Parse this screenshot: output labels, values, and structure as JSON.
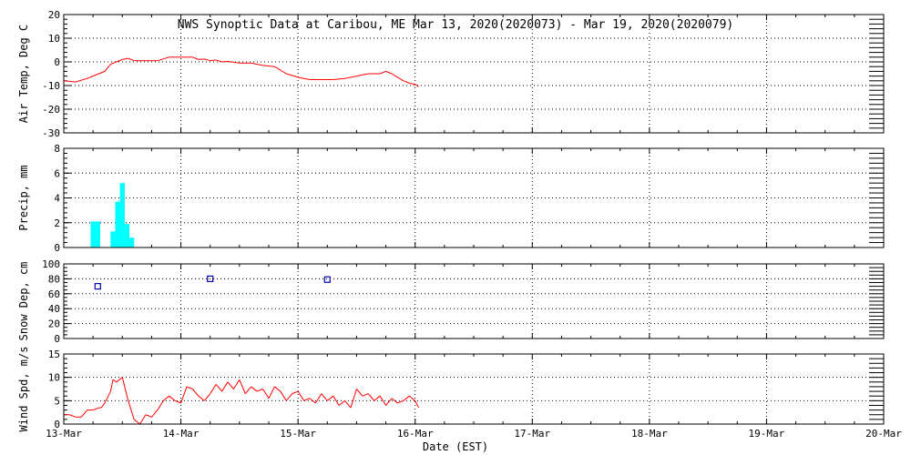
{
  "chart_data": {
    "title": "NWS Synoptic Data at Caribou, ME   Mar 13, 2020(2020073) - Mar 19, 2020(2020079)",
    "xlabel": "Date (EST)",
    "x_ticks": [
      "13-Mar",
      "14-Mar",
      "15-Mar",
      "16-Mar",
      "17-Mar",
      "18-Mar",
      "19-Mar",
      "20-Mar"
    ],
    "x_range": [
      0,
      7
    ],
    "grid": true,
    "panels": [
      {
        "name": "air-temp",
        "type": "line",
        "ylabel": "Air Temp, Deg C",
        "ylim": [
          -30,
          20
        ],
        "yticks": [
          20,
          10,
          0,
          -10,
          -20,
          -30
        ],
        "color": "#ff0000",
        "x": [
          0,
          0.1,
          0.2,
          0.25,
          0.3,
          0.35,
          0.4,
          0.5,
          0.55,
          0.6,
          0.7,
          0.8,
          0.9,
          0.95,
          1.0,
          1.1,
          1.15,
          1.2,
          1.25,
          1.3,
          1.35,
          1.4,
          1.5,
          1.6,
          1.7,
          1.8,
          1.9,
          2.0,
          2.05,
          2.1,
          2.2,
          2.3,
          2.4,
          2.5,
          2.6,
          2.7,
          2.75,
          2.8,
          2.85,
          2.9,
          2.95,
          3.0,
          3.03
        ],
        "y": [
          -8,
          -8.5,
          -7,
          -6,
          -5,
          -4,
          -1,
          1,
          1.5,
          0.5,
          0.5,
          0.5,
          2,
          2,
          2,
          2,
          1,
          1.2,
          0.5,
          0.8,
          0,
          0.2,
          -0.5,
          -0.5,
          -1.5,
          -2,
          -5,
          -6.5,
          -7,
          -7.5,
          -7.5,
          -7.5,
          -7,
          -6,
          -5,
          -5,
          -4,
          -5,
          -6.5,
          -8,
          -9,
          -9.5,
          -10.5
        ]
      },
      {
        "name": "precip",
        "type": "bar",
        "ylabel": "Precip, mm",
        "ylim": [
          0,
          8
        ],
        "yticks": [
          8,
          6,
          4,
          2,
          0
        ],
        "color": "#00ffff",
        "bar_width": 0.0417,
        "x": [
          0.25,
          0.29,
          0.42,
          0.46,
          0.5,
          0.54,
          0.58
        ],
        "values": [
          2.1,
          2.1,
          1.3,
          3.7,
          5.2,
          1.9,
          0.8
        ]
      },
      {
        "name": "snow-depth",
        "type": "scatter",
        "ylabel": "Snow Dep, cm",
        "ylim": [
          0,
          100
        ],
        "yticks": [
          100,
          80,
          60,
          40,
          20,
          0
        ],
        "color": "#0000aa",
        "x": [
          0.29,
          1.25,
          2.25
        ],
        "y": [
          70,
          80,
          79
        ]
      },
      {
        "name": "wind-speed",
        "type": "line",
        "ylabel": "Wind Spd, m/s",
        "ylim": [
          0,
          15
        ],
        "yticks": [
          15,
          10,
          5,
          0
        ],
        "color": "#ff0000",
        "x": [
          0,
          0.05,
          0.1,
          0.15,
          0.2,
          0.25,
          0.3,
          0.32,
          0.35,
          0.4,
          0.42,
          0.45,
          0.5,
          0.55,
          0.6,
          0.65,
          0.7,
          0.75,
          0.8,
          0.85,
          0.9,
          0.95,
          1.0,
          1.05,
          1.1,
          1.15,
          1.2,
          1.25,
          1.3,
          1.35,
          1.4,
          1.45,
          1.5,
          1.55,
          1.6,
          1.65,
          1.7,
          1.75,
          1.8,
          1.85,
          1.9,
          1.95,
          2.0,
          2.05,
          2.1,
          2.15,
          2.2,
          2.25,
          2.3,
          2.35,
          2.4,
          2.45,
          2.5,
          2.55,
          2.6,
          2.65,
          2.7,
          2.75,
          2.8,
          2.85,
          2.9,
          2.95,
          3.0,
          3.03
        ],
        "y": [
          2,
          2,
          1.5,
          1.5,
          3,
          3,
          3.5,
          3.5,
          4.5,
          7,
          9.5,
          9,
          10,
          5,
          1,
          0,
          2,
          1.5,
          3,
          5,
          6,
          5,
          4.5,
          8,
          7.5,
          6,
          5,
          6.5,
          8.5,
          7,
          9,
          7.5,
          9.5,
          6.5,
          8,
          7,
          7.5,
          5.5,
          8,
          7,
          5,
          6.5,
          7,
          5,
          5.5,
          4.5,
          6.5,
          5,
          6,
          4,
          5,
          3.5,
          7.5,
          6,
          6.5,
          5,
          6,
          4,
          5.5,
          4.5,
          5,
          6,
          5,
          3.5
        ]
      }
    ]
  }
}
